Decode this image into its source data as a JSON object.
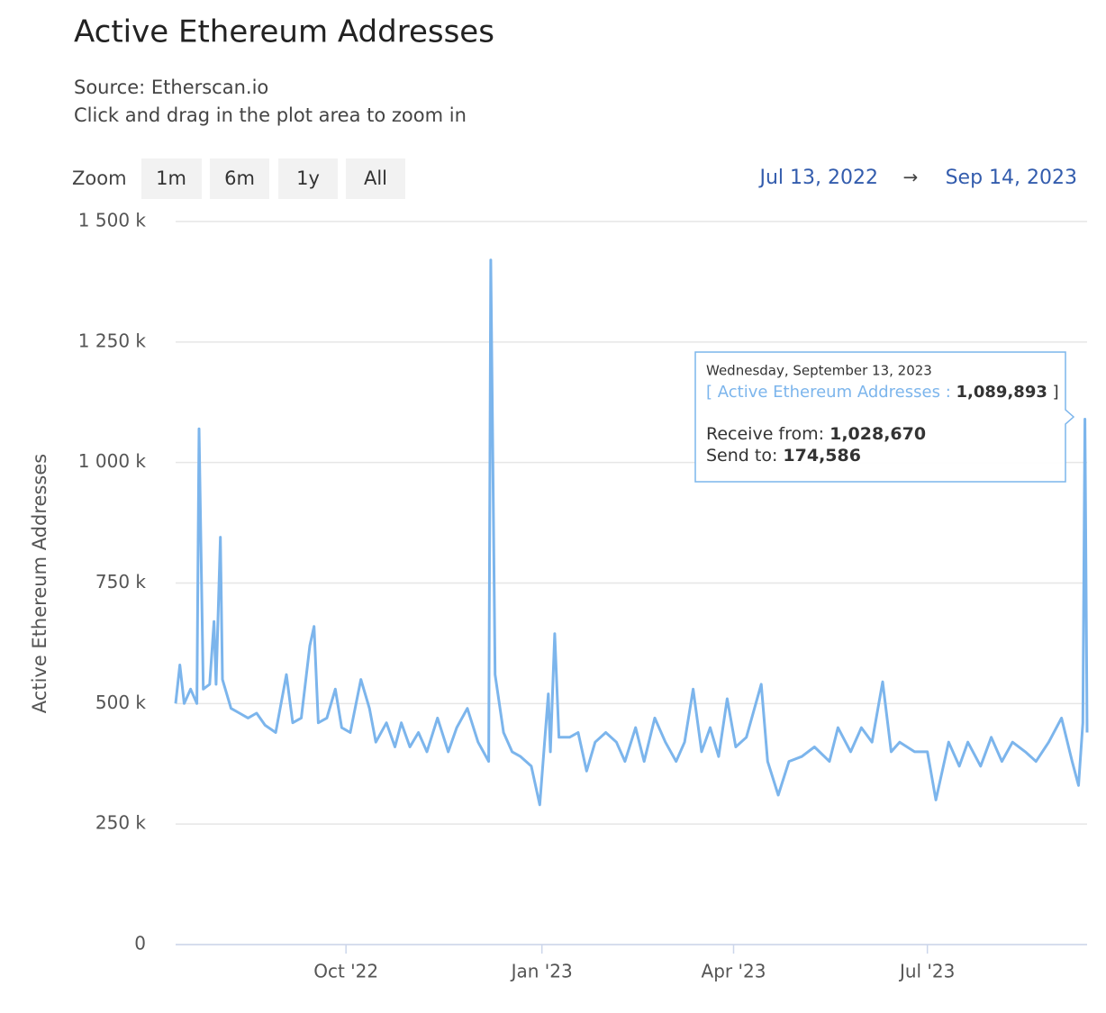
{
  "chart_data": {
    "type": "line",
    "title": "Active Ethereum Addresses",
    "subtitle": [
      "Source: Etherscan.io",
      "Click and drag in the plot area to zoom in"
    ],
    "zoom_label": "Zoom",
    "zoom_buttons": [
      "1m",
      "6m",
      "1y",
      "All"
    ],
    "range_from": "Jul 13, 2022",
    "range_arrow": "→",
    "range_to": "Sep 14, 2023",
    "y_label": "Active Ethereum Addresses",
    "x": [
      "2022-07-13",
      "2022-07-15",
      "2022-07-17",
      "2022-07-20",
      "2022-07-23",
      "2022-07-24",
      "2022-07-26",
      "2022-07-29",
      "2022-07-31",
      "2022-08-01",
      "2022-08-03",
      "2022-08-04",
      "2022-08-08",
      "2022-08-12",
      "2022-08-16",
      "2022-08-20",
      "2022-08-24",
      "2022-08-29",
      "2022-09-03",
      "2022-09-06",
      "2022-09-10",
      "2022-09-14",
      "2022-09-16",
      "2022-09-18",
      "2022-09-22",
      "2022-09-26",
      "2022-09-29",
      "2022-10-03",
      "2022-10-08",
      "2022-10-12",
      "2022-10-15",
      "2022-10-20",
      "2022-10-24",
      "2022-10-27",
      "2022-10-31",
      "2022-11-04",
      "2022-11-08",
      "2022-11-13",
      "2022-11-18",
      "2022-11-22",
      "2022-11-27",
      "2022-12-02",
      "2022-12-07",
      "2022-12-08",
      "2022-12-10",
      "2022-12-14",
      "2022-12-18",
      "2022-12-22",
      "2022-12-27",
      "2022-12-31",
      "2023-01-04",
      "2023-01-05",
      "2023-01-07",
      "2023-01-09",
      "2023-01-14",
      "2023-01-18",
      "2023-01-22",
      "2023-01-26",
      "2023-01-31",
      "2023-02-05",
      "2023-02-09",
      "2023-02-14",
      "2023-02-18",
      "2023-02-23",
      "2023-02-28",
      "2023-03-05",
      "2023-03-09",
      "2023-03-13",
      "2023-03-17",
      "2023-03-21",
      "2023-03-25",
      "2023-03-29",
      "2023-04-02",
      "2023-04-07",
      "2023-04-14",
      "2023-04-17",
      "2023-04-22",
      "2023-04-27",
      "2023-05-03",
      "2023-05-09",
      "2023-05-16",
      "2023-05-20",
      "2023-05-26",
      "2023-05-31",
      "2023-06-05",
      "2023-06-10",
      "2023-06-14",
      "2023-06-18",
      "2023-06-25",
      "2023-07-01",
      "2023-07-05",
      "2023-07-11",
      "2023-07-16",
      "2023-07-20",
      "2023-07-26",
      "2023-07-31",
      "2023-08-05",
      "2023-08-10",
      "2023-08-16",
      "2023-08-21",
      "2023-08-27",
      "2023-09-02",
      "2023-09-07",
      "2023-09-10",
      "2023-09-12",
      "2023-09-13",
      "2023-09-14"
    ],
    "series": [
      {
        "name": "Active Ethereum Addresses",
        "color": "#7cb5ec",
        "values": [
          500000,
          580000,
          500000,
          530000,
          500000,
          1070000,
          530000,
          540000,
          670000,
          540000,
          845000,
          550000,
          490000,
          480000,
          470000,
          480000,
          455000,
          440000,
          560000,
          460000,
          470000,
          620000,
          660000,
          460000,
          470000,
          530000,
          450000,
          440000,
          550000,
          490000,
          420000,
          460000,
          410000,
          460000,
          410000,
          440000,
          400000,
          470000,
          400000,
          450000,
          490000,
          420000,
          380000,
          1420000,
          560000,
          440000,
          400000,
          390000,
          370000,
          290000,
          520000,
          400000,
          645000,
          430000,
          430000,
          440000,
          360000,
          420000,
          440000,
          420000,
          380000,
          450000,
          380000,
          470000,
          420000,
          380000,
          420000,
          530000,
          400000,
          450000,
          390000,
          510000,
          410000,
          430000,
          540000,
          380000,
          310000,
          380000,
          390000,
          410000,
          380000,
          450000,
          400000,
          450000,
          420000,
          545000,
          400000,
          420000,
          400000,
          400000,
          300000,
          420000,
          370000,
          420000,
          370000,
          430000,
          380000,
          420000,
          400000,
          380000,
          420000,
          470000,
          380000,
          330000,
          460000,
          1089893,
          440000
        ]
      }
    ],
    "xlim": [
      "2022-07-13",
      "2023-09-14"
    ],
    "xticks": [
      {
        "value": "2022-10-01",
        "label": "Oct '22"
      },
      {
        "value": "2023-01-01",
        "label": "Jan '23"
      },
      {
        "value": "2023-04-01",
        "label": "Apr '23"
      },
      {
        "value": "2023-07-01",
        "label": "Jul '23"
      }
    ],
    "ylim": [
      0,
      1500000
    ],
    "yticks": [
      0,
      {
        "value": 250000,
        "label": "250 k"
      },
      {
        "value": 500000,
        "label": "500 k"
      },
      {
        "value": 750000,
        "label": "750 k"
      },
      {
        "value": 1000000,
        "label": "1 000 k"
      },
      {
        "value": 1250000,
        "label": "1 250 k"
      },
      {
        "value": 1500000,
        "label": "1 500 k"
      }
    ],
    "grid": true,
    "tooltip": {
      "date": "Wednesday, September 13, 2023",
      "open": "[",
      "sep": ":",
      "value_label": "1,089,893",
      "close": "]",
      "receive_label": "Receive from:",
      "receive": "1,028,670",
      "send_label": "Send to:",
      "send": "174,586"
    }
  }
}
